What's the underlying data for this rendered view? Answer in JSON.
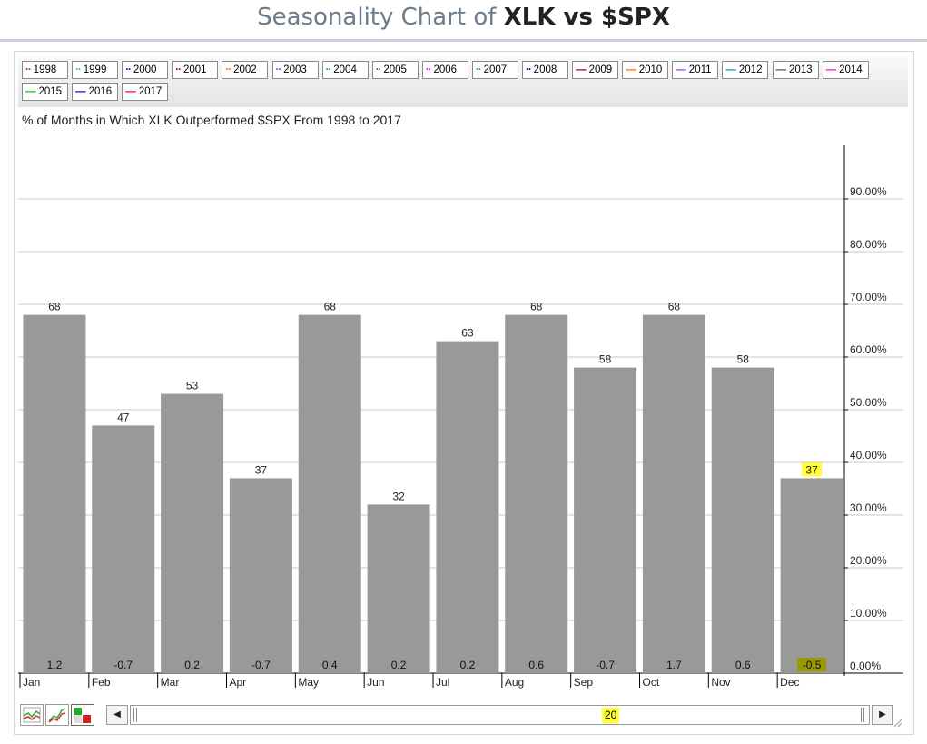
{
  "page": {
    "title_prefix": "Seasonality Chart of",
    "title_symbols": "XLK vs $SPX",
    "subtitle": "% of Months in Which XLK Outperformed $SPX From 1998 to 2017"
  },
  "legend": {
    "items": [
      {
        "label": "1998",
        "color": "#cc00cc",
        "style": "dotted"
      },
      {
        "label": "1999",
        "color": "#33cc33",
        "style": "dotted"
      },
      {
        "label": "2000",
        "color": "#0000cc",
        "style": "dotted"
      },
      {
        "label": "2001",
        "color": "#990000",
        "style": "dotted"
      },
      {
        "label": "2002",
        "color": "#ff6600",
        "style": "dotted"
      },
      {
        "label": "2003",
        "color": "#9933cc",
        "style": "dotted"
      },
      {
        "label": "2004",
        "color": "#009999",
        "style": "dotted"
      },
      {
        "label": "2005",
        "color": "#555555",
        "style": "dotted"
      },
      {
        "label": "2006",
        "color": "#ff00ff",
        "style": "dotted"
      },
      {
        "label": "2007",
        "color": "#00cc00",
        "style": "dotted"
      },
      {
        "label": "2008",
        "color": "#0000aa",
        "style": "dotted"
      },
      {
        "label": "2009",
        "color": "#880000",
        "style": "solid"
      },
      {
        "label": "2010",
        "color": "#ff6600",
        "style": "solid"
      },
      {
        "label": "2011",
        "color": "#9933ff",
        "style": "solid"
      },
      {
        "label": "2012",
        "color": "#009999",
        "style": "solid"
      },
      {
        "label": "2013",
        "color": "#555555",
        "style": "solid"
      },
      {
        "label": "2014",
        "color": "#ff00cc",
        "style": "solid"
      },
      {
        "label": "2015",
        "color": "#00cc00",
        "style": "solid"
      },
      {
        "label": "2016",
        "color": "#0000cc",
        "style": "solid"
      },
      {
        "label": "2017",
        "color": "#ff0000",
        "style": "solid"
      }
    ]
  },
  "chart_data": {
    "type": "bar",
    "categories": [
      "Jan",
      "Feb",
      "Mar",
      "Apr",
      "May",
      "Jun",
      "Jul",
      "Aug",
      "Sep",
      "Oct",
      "Nov",
      "Dec"
    ],
    "values": [
      68,
      47,
      53,
      37,
      68,
      32,
      63,
      68,
      58,
      68,
      58,
      37
    ],
    "value_labels": [
      "68",
      "47",
      "53",
      "37",
      "68",
      "32",
      "63",
      "68",
      "58",
      "68",
      "58",
      "37"
    ],
    "avg_return_labels": [
      "1.2",
      "-0.7",
      "0.2",
      "-0.7",
      "0.4",
      "0.2",
      "0.2",
      "0.6",
      "-0.7",
      "1.7",
      "0.6",
      "-0.5"
    ],
    "highlighted_category": "Dec",
    "ylim": [
      0,
      100
    ],
    "yticks": [
      0,
      10,
      20,
      30,
      40,
      50,
      60,
      70,
      80,
      90
    ],
    "ytick_labels": [
      "0.00%",
      "10.00%",
      "20.00%",
      "30.00%",
      "40.00%",
      "50.00%",
      "60.00%",
      "70.00%",
      "80.00%",
      "90.00%"
    ],
    "y_axis_side": "right",
    "grid": true,
    "bar_color": "#999999",
    "highlight_color": "#ffff33",
    "highlight_dark_color": "#999900"
  },
  "scrollbar": {
    "value": "20",
    "left_arrow": "◀",
    "right_arrow": "▶"
  }
}
